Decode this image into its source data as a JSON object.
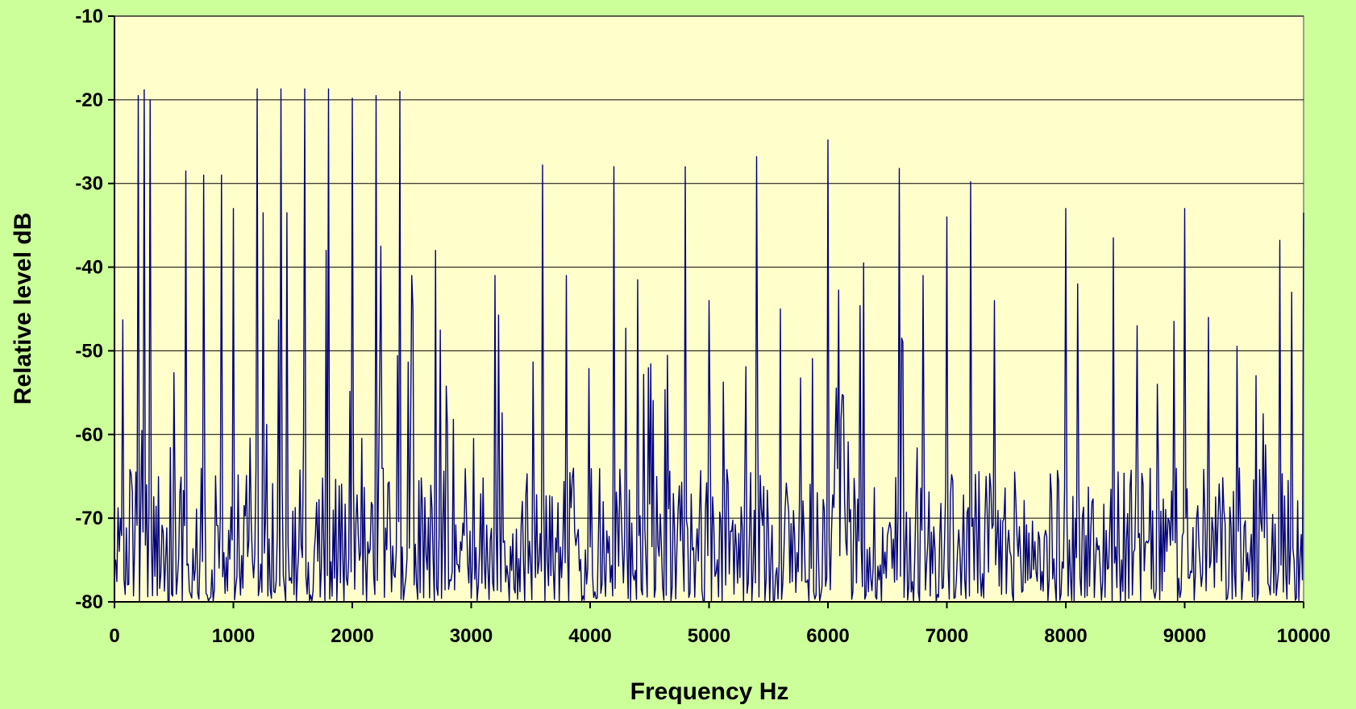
{
  "chart_data": {
    "type": "line",
    "title": "",
    "xlabel": "Frequency Hz",
    "ylabel": "Relative level dB",
    "xlim": [
      0,
      10000
    ],
    "ylim": [
      -80,
      -10
    ],
    "x_ticks": [
      "0",
      "1000",
      "2000",
      "3000",
      "4000",
      "5000",
      "6000",
      "7000",
      "8000",
      "9000",
      "10000"
    ],
    "y_ticks": [
      "-10",
      "-20",
      "-30",
      "-40",
      "-50",
      "-60",
      "-70",
      "-80"
    ],
    "grid": "horizontal",
    "legend": "none",
    "colors": {
      "background": "#ccff99",
      "plot_area": "#ffffcc",
      "line": "#000080",
      "grid": "#000000"
    },
    "noise_floor": [
      -80,
      -64
    ],
    "series": [
      {
        "peaks": [
          [
            200,
            -19.5
          ],
          [
            250,
            -18.8
          ],
          [
            300,
            -20.0
          ],
          [
            600,
            -28.5
          ],
          [
            750,
            -29.0
          ],
          [
            900,
            -29.0
          ],
          [
            1000,
            -33.0
          ],
          [
            1200,
            -18.7
          ],
          [
            1250,
            -33.5
          ],
          [
            1400,
            -18.7
          ],
          [
            1450,
            -33.5
          ],
          [
            1600,
            -18.7
          ],
          [
            1800,
            -18.7
          ],
          [
            1780,
            -38.0
          ],
          [
            2000,
            -19.8
          ],
          [
            2200,
            -19.5
          ],
          [
            2240,
            -37.5
          ],
          [
            2400,
            -19.0
          ],
          [
            2500,
            -41.0
          ],
          [
            2700,
            -38.0
          ],
          [
            3200,
            -41.0
          ],
          [
            3600,
            -27.8
          ],
          [
            3800,
            -41.0
          ],
          [
            4200,
            -28.0
          ],
          [
            4400,
            -41.5
          ],
          [
            4800,
            -28.0
          ],
          [
            5000,
            -44.0
          ],
          [
            5400,
            -26.8
          ],
          [
            5600,
            -45.0
          ],
          [
            6000,
            -24.8
          ],
          [
            6300,
            -39.5
          ],
          [
            6600,
            -28.2
          ],
          [
            6800,
            -41.0
          ],
          [
            7000,
            -34.0
          ],
          [
            7200,
            -29.8
          ],
          [
            7400,
            -44.0
          ],
          [
            8000,
            -33.0
          ],
          [
            8100,
            -42.0
          ],
          [
            8400,
            -36.5
          ],
          [
            8600,
            -47.0
          ],
          [
            9000,
            -33.0
          ],
          [
            9200,
            -46.0
          ],
          [
            9800,
            -36.8
          ],
          [
            9900,
            -43.0
          ],
          [
            10000,
            -33.5
          ]
        ]
      }
    ]
  }
}
